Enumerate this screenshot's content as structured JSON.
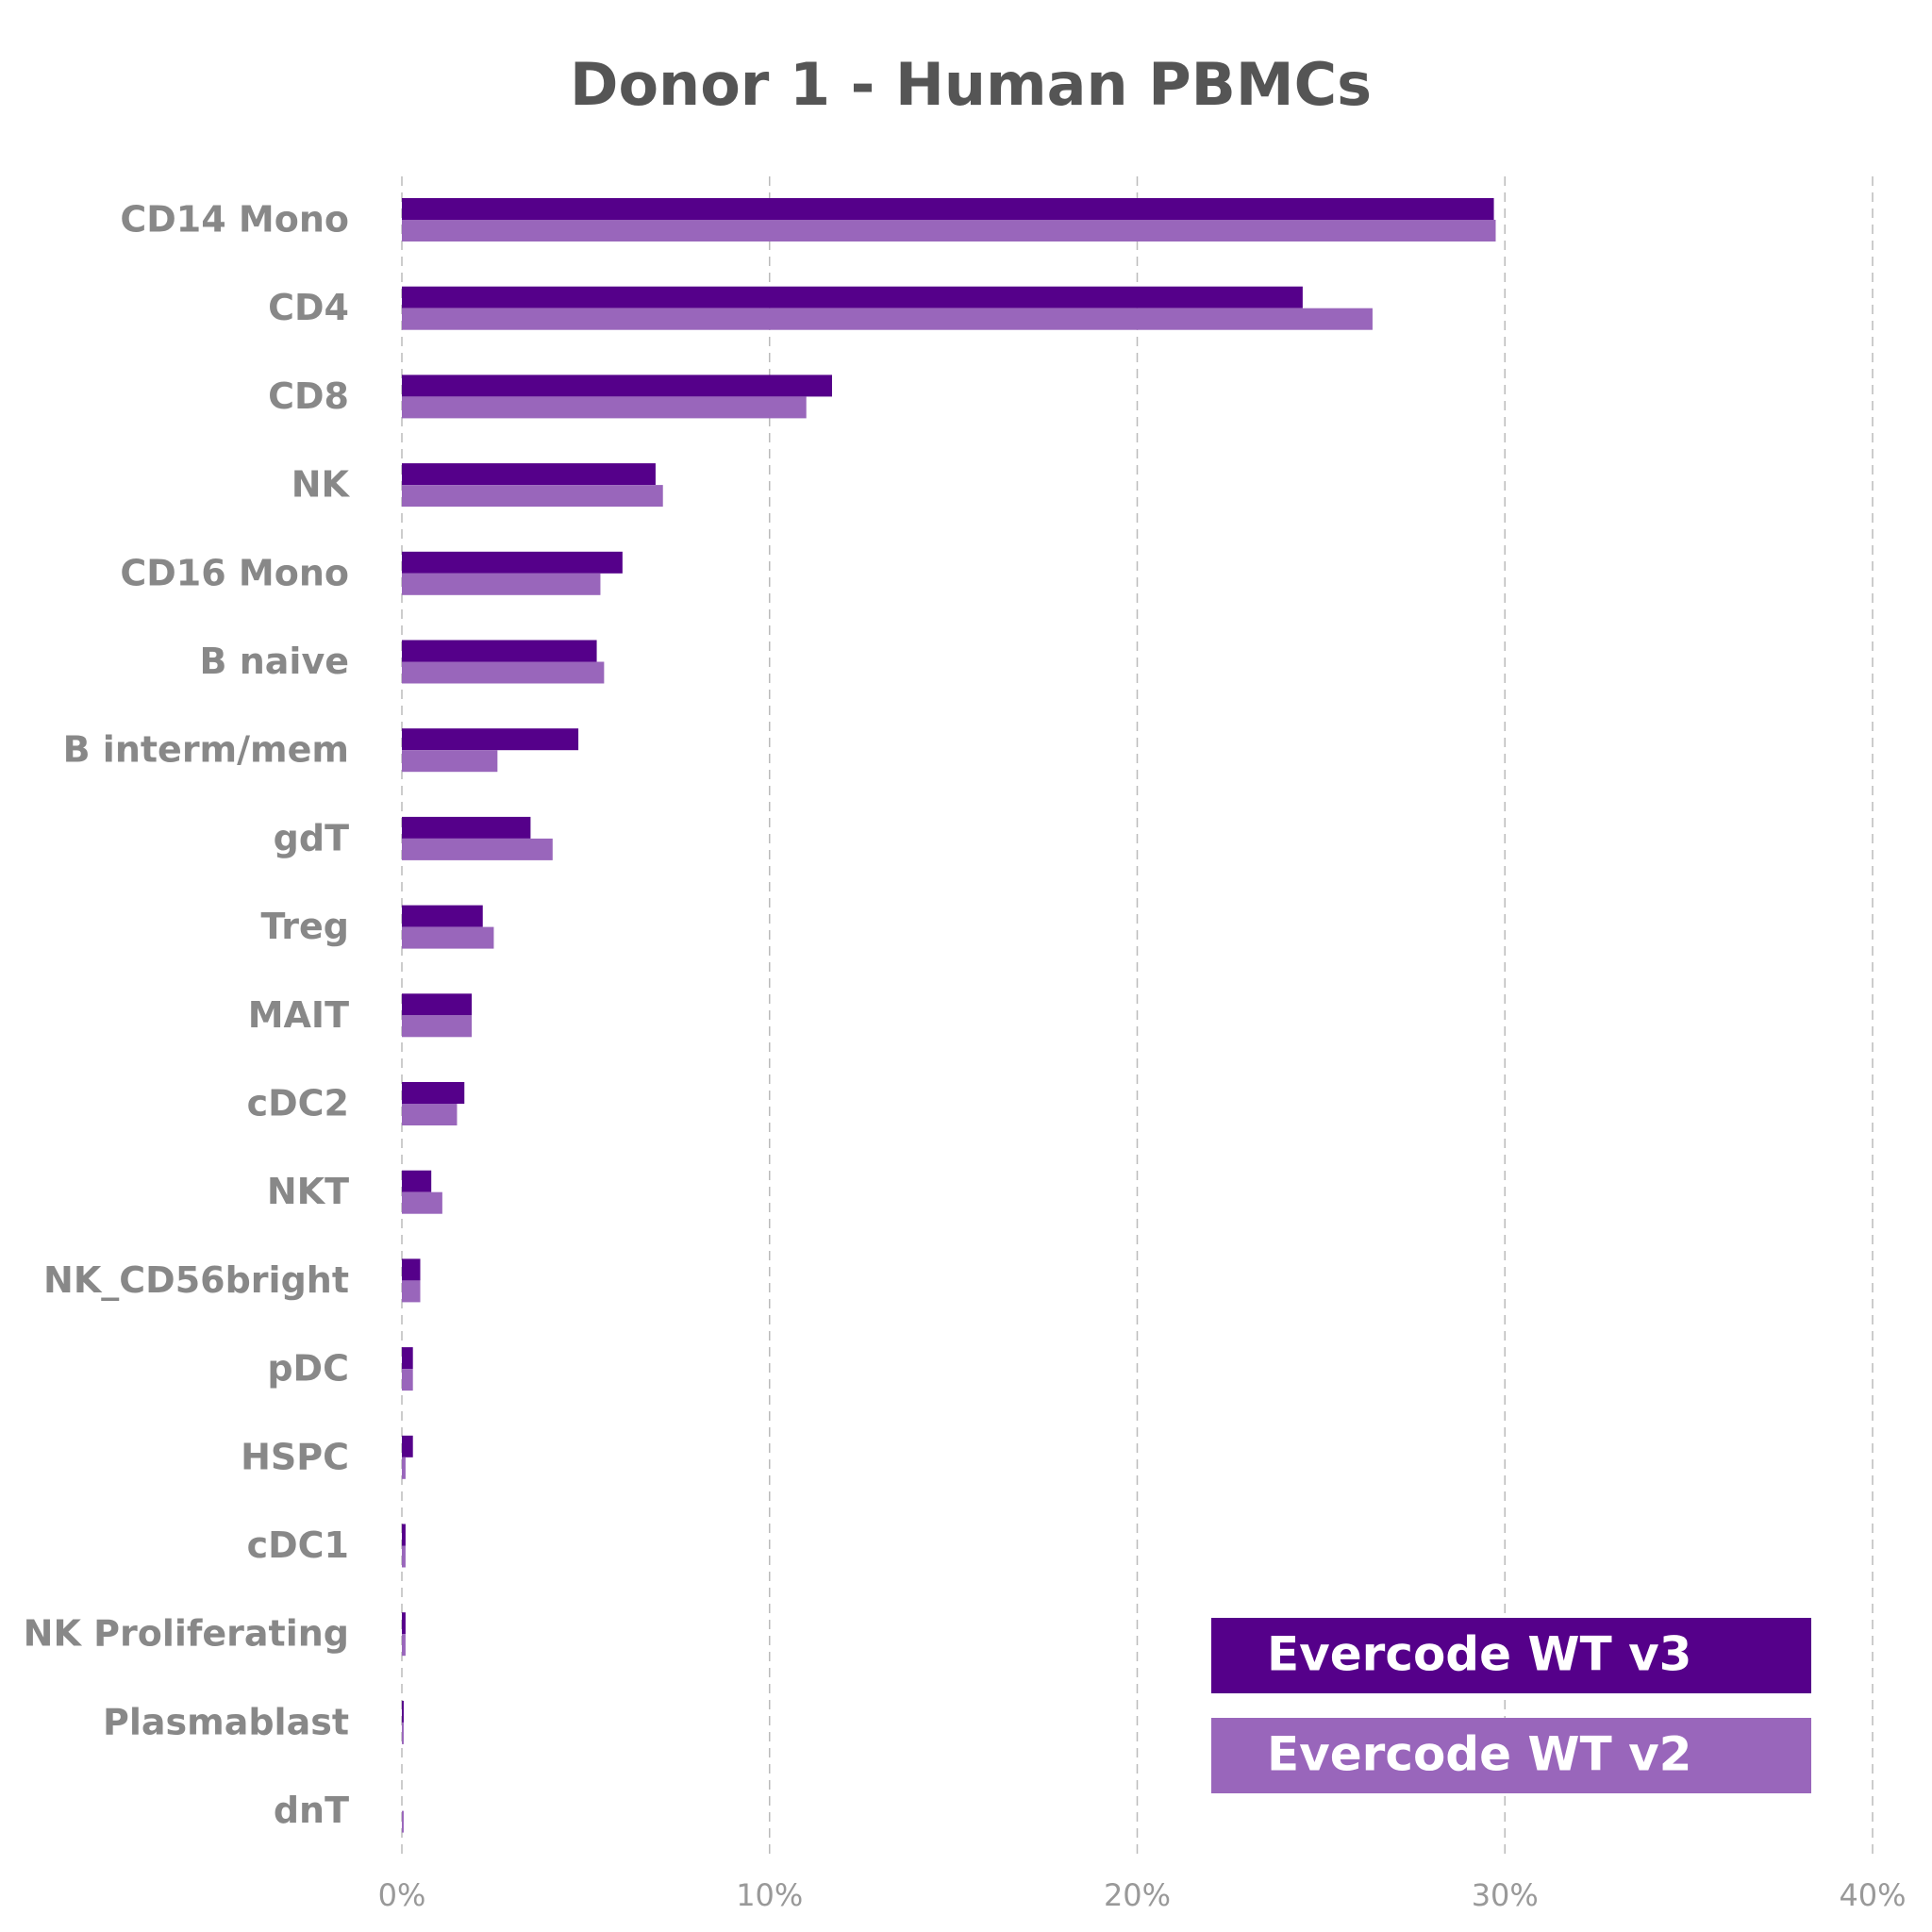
{
  "chart_data": {
    "type": "barh",
    "title": "Donor 1 - Human PBMCs",
    "categories": [
      "CD14 Mono",
      "CD4",
      "CD8",
      "NK",
      "CD16 Mono",
      "B naive",
      "B interm/mem",
      "gdT",
      "Treg",
      "MAIT",
      "cDC2",
      "NKT",
      "NK_CD56bright",
      "pDC",
      "HSPC",
      "cDC1",
      "NK Proliferating",
      "Plasmablast",
      "dnT"
    ],
    "series": [
      {
        "name": "Evercode WT v3",
        "color": "#55008a",
        "values": [
          29.7,
          24.5,
          11.7,
          6.9,
          6.0,
          5.3,
          4.8,
          3.5,
          2.2,
          1.9,
          1.7,
          0.8,
          0.5,
          0.3,
          0.3,
          0.1,
          0.1,
          0.05,
          0
        ]
      },
      {
        "name": "Evercode WT v2",
        "color": "#9966bb",
        "values": [
          29.75,
          26.4,
          11.0,
          7.1,
          5.4,
          5.5,
          2.6,
          4.1,
          2.5,
          1.9,
          1.5,
          1.1,
          0.5,
          0.3,
          0.1,
          0.1,
          0.1,
          0.05,
          0.05
        ]
      }
    ],
    "xlim": [
      0,
      40
    ],
    "xticks": [
      {
        "value": 0,
        "label": "0%"
      },
      {
        "value": 10,
        "label": "10%"
      },
      {
        "value": 20,
        "label": "20%"
      },
      {
        "value": 30,
        "label": "30%"
      },
      {
        "value": 40,
        "label": "40%"
      }
    ],
    "grid": true,
    "legend": "lower right"
  }
}
